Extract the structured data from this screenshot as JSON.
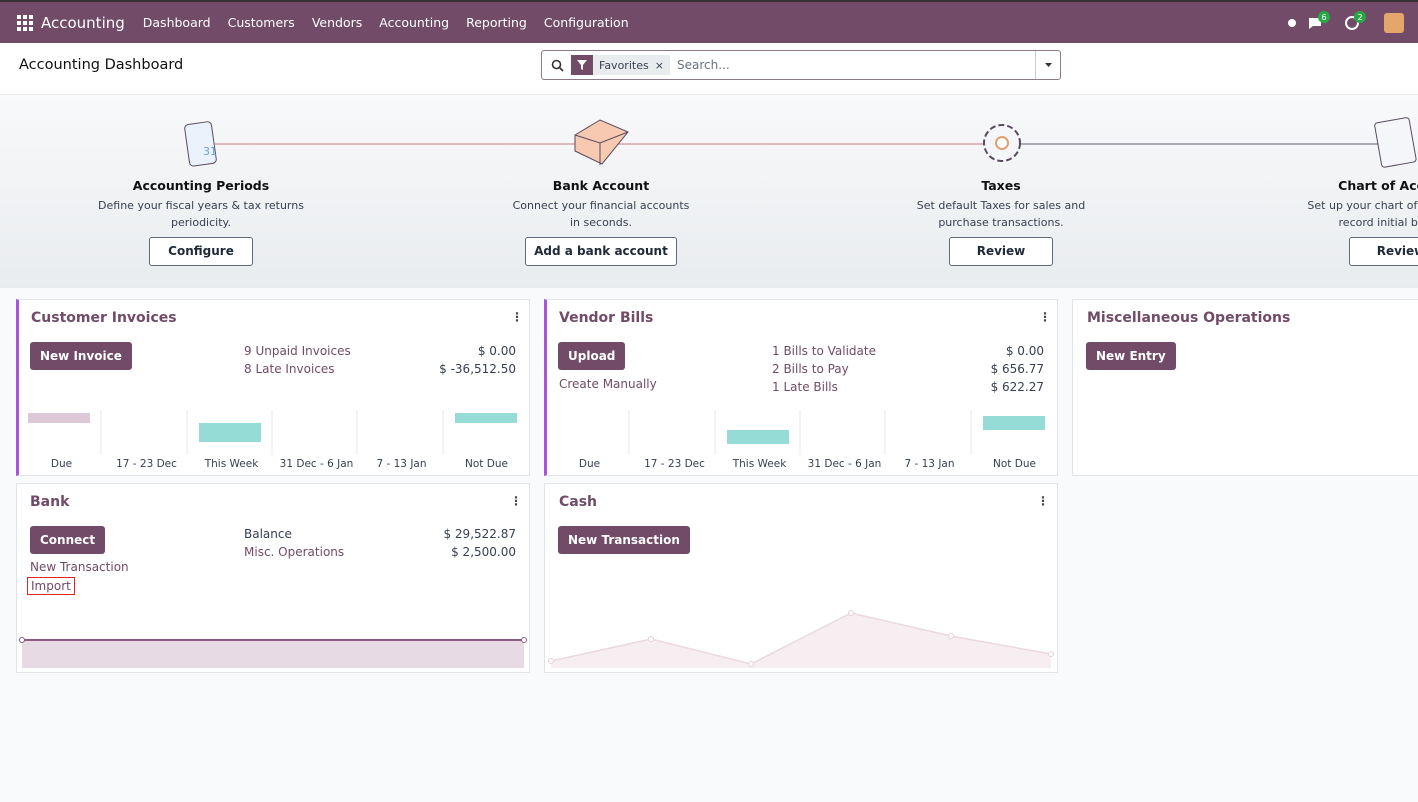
{
  "navbar": {
    "app": "Accounting",
    "menu": [
      "Dashboard",
      "Customers",
      "Vendors",
      "Accounting",
      "Reporting",
      "Configuration"
    ],
    "messages_badge": "6",
    "activities_badge": "2"
  },
  "control_panel": {
    "title": "Accounting Dashboard",
    "facet": "Favorites",
    "search_placeholder": "Search..."
  },
  "onboarding": {
    "steps": [
      {
        "title": "Accounting Periods",
        "description": "Define your fiscal years & tax returns periodicity.",
        "button": "Configure"
      },
      {
        "title": "Bank Account",
        "description": "Connect your financial accounts in seconds.",
        "button": "Add a bank account"
      },
      {
        "title": "Taxes",
        "description": "Set default Taxes for sales and purchase transactions.",
        "button": "Review"
      },
      {
        "title": "Chart of Accounts",
        "description": "Set up your chart of accounts and record initial balances.",
        "button": "Review"
      }
    ]
  },
  "journals": {
    "customer_invoices": {
      "title": "Customer Invoices",
      "button": "New Invoice",
      "rows": [
        {
          "label": "9 Unpaid Invoices",
          "amount": "$ 0.00"
        },
        {
          "label": "8 Late Invoices",
          "amount": "$ -36,512.50"
        }
      ],
      "graph_labels": [
        "Due",
        "17 - 23 Dec",
        "This Week",
        "31 Dec - 6 Jan",
        "7 - 13 Jan",
        "Not Due"
      ]
    },
    "vendor_bills": {
      "title": "Vendor Bills",
      "button": "Upload",
      "link": "Create Manually",
      "rows": [
        {
          "label": "1 Bills to Validate",
          "amount": "$ 0.00"
        },
        {
          "label": "2 Bills to Pay",
          "amount": "$ 656.77"
        },
        {
          "label": "1 Late Bills",
          "amount": "$ 622.27"
        }
      ],
      "graph_labels": [
        "Due",
        "17 - 23 Dec",
        "This Week",
        "31 Dec - 6 Jan",
        "7 - 13 Jan",
        "Not Due"
      ]
    },
    "misc": {
      "title": "Miscellaneous Operations",
      "button": "New Entry"
    },
    "bank": {
      "title": "Bank",
      "button": "Connect",
      "links": [
        "New Transaction",
        "Import"
      ],
      "rows": [
        {
          "label": "Balance",
          "amount": "$ 29,522.87"
        },
        {
          "label": "Misc. Operations",
          "amount": "$ 2,500.00"
        }
      ]
    },
    "cash": {
      "title": "Cash",
      "button": "New Transaction"
    }
  }
}
